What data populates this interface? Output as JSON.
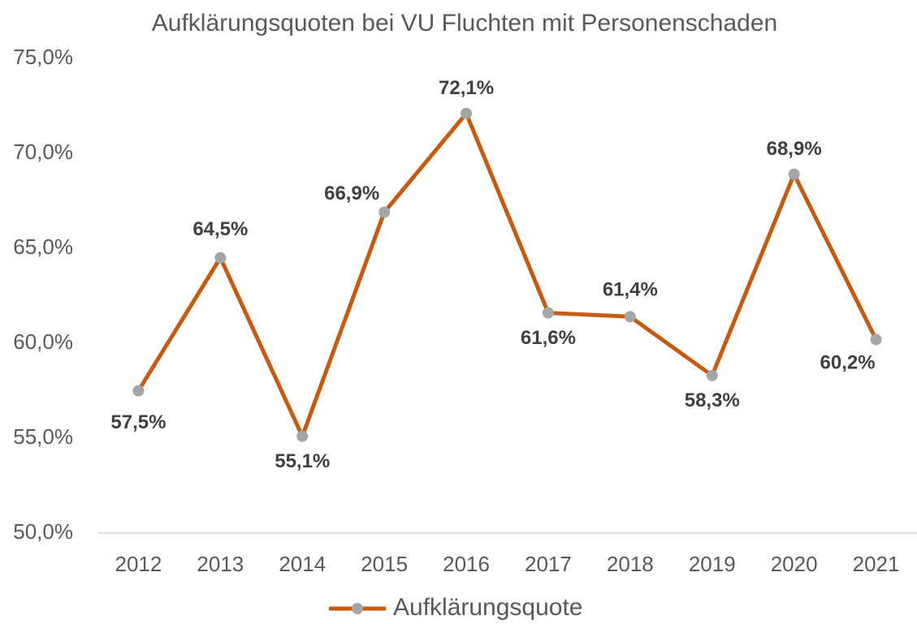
{
  "chart_data": {
    "type": "line",
    "title": "Aufklärungsquoten bei VU Fluchten mit Personenschaden",
    "categories": [
      "2012",
      "2013",
      "2014",
      "2015",
      "2016",
      "2017",
      "2018",
      "2019",
      "2020",
      "2021"
    ],
    "series": [
      {
        "name": "Aufklärungsquote",
        "color": "#c55a11",
        "marker_color": "#a5a5a5",
        "values": [
          57.5,
          64.5,
          55.1,
          66.9,
          72.1,
          61.6,
          61.4,
          58.3,
          68.9,
          60.2
        ],
        "value_labels": [
          "57,5%",
          "64,5%",
          "55,1%",
          "66,9%",
          "72,1%",
          "61,6%",
          "61,4%",
          "58,3%",
          "68,9%",
          "60,2%"
        ]
      }
    ],
    "ylim": [
      50,
      75
    ],
    "yticks": [
      {
        "value": 50,
        "label": "50,0%"
      },
      {
        "value": 55,
        "label": "55,0%"
      },
      {
        "value": 60,
        "label": "60,0%"
      },
      {
        "value": 65,
        "label": "65,0%"
      },
      {
        "value": 70,
        "label": "70,0%"
      },
      {
        "value": 75,
        "label": "75,0%"
      }
    ],
    "grid": false,
    "legend": "bottom"
  }
}
